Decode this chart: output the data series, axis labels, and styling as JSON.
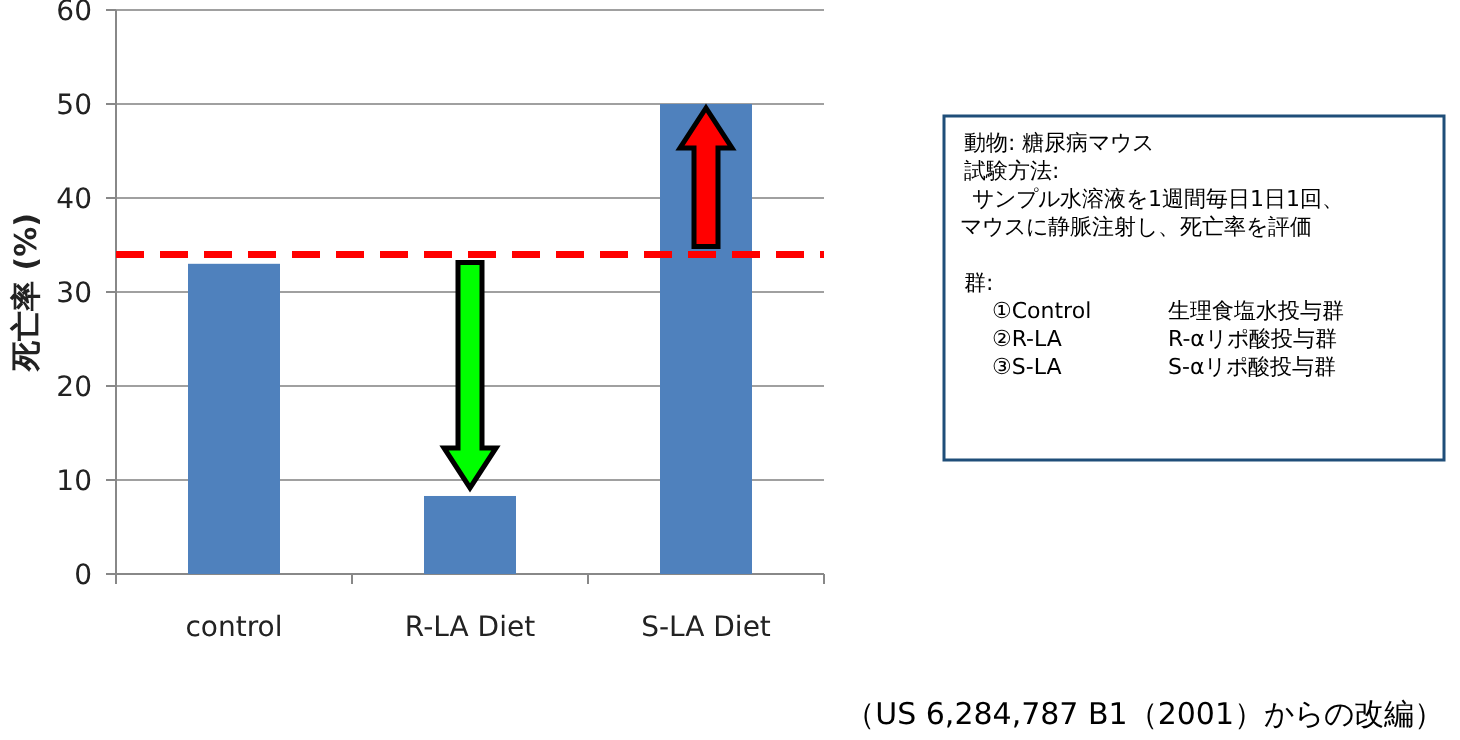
{
  "chart_data": {
    "type": "bar",
    "ylabel": "死亡率 (%)",
    "categories": [
      "control",
      "R-LA Diet",
      "S-LA Diet"
    ],
    "values": [
      33,
      8.3,
      50
    ],
    "color": "#4f81bd",
    "ylim": [
      0,
      60
    ],
    "yticks": [
      0,
      10,
      20,
      30,
      40,
      50,
      60
    ],
    "grid": "y",
    "ref_lines": [
      {
        "axis": "y",
        "value": 34,
        "color": "#ff0000",
        "line_style": "dashed"
      }
    ],
    "annotations": [
      "動物: 糖尿病マウス",
      "試験方法:",
      "サンプル水溶液を1週間毎日1日1回、",
      "マウスに静脈注射し、死亡率を評価",
      "群:",
      "①Control",
      "生理食塩水投与群",
      "②R-LA",
      "R-αリポ酸投与群",
      "③S-LA",
      "S-αリポ酸投与群",
      "（US 6,284,787 B1（2001）からの改編）"
    ]
  }
}
